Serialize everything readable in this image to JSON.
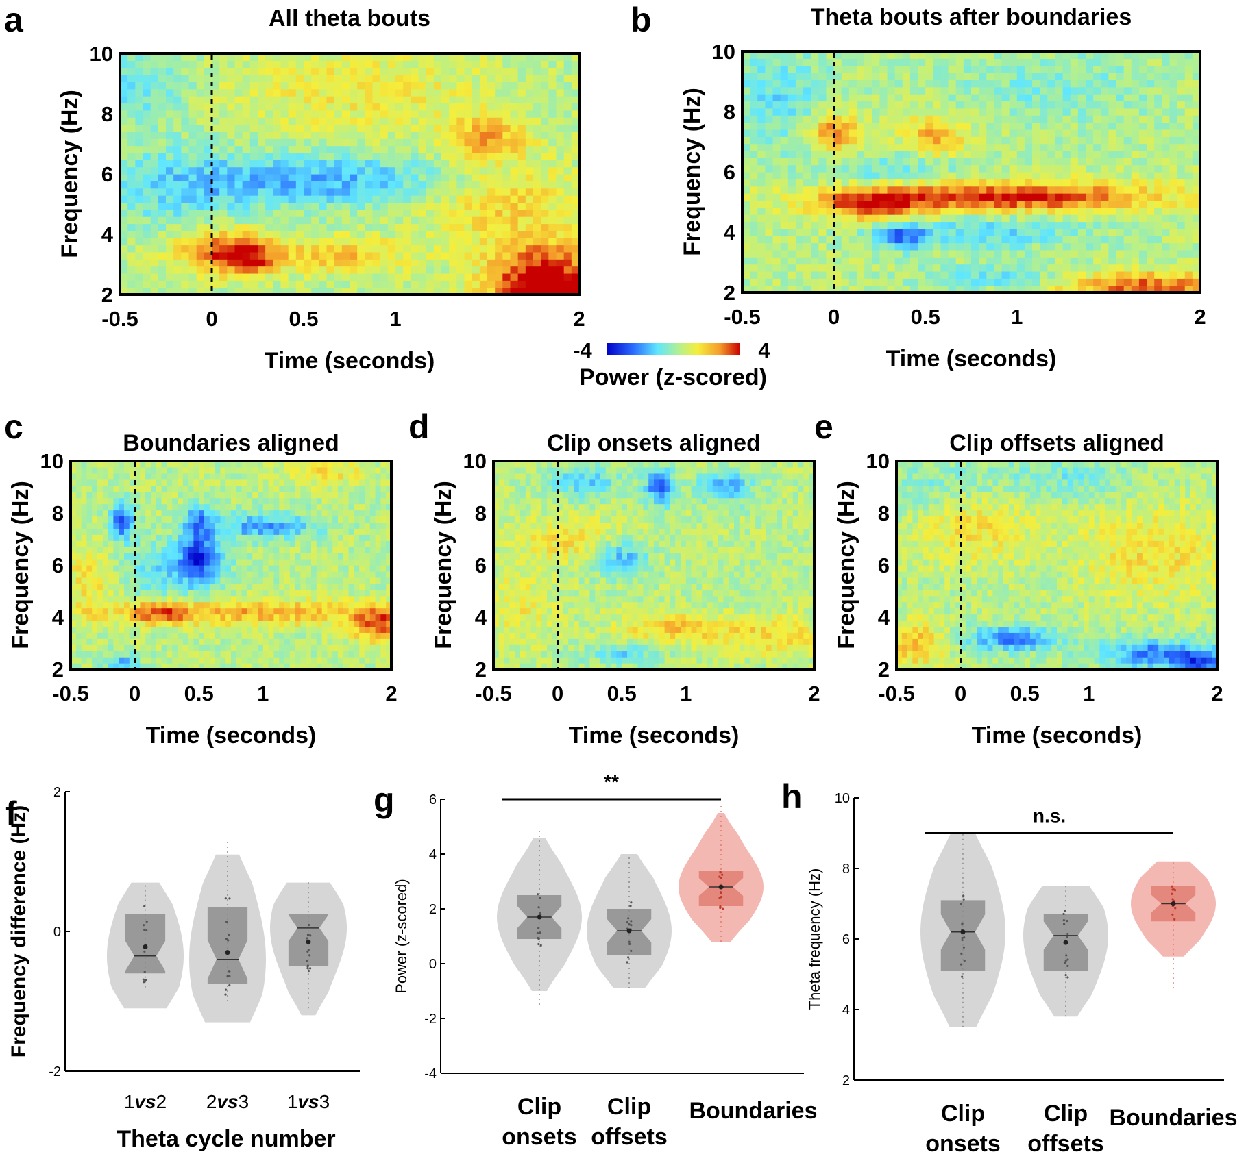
{
  "colors": {
    "jet_low": "#0000c8",
    "jet_high": "#c80000",
    "violin_gray": "#c8c8c8",
    "box_gray": "#8a8a8a",
    "violin_red": "#f0a098",
    "box_red": "#e07a6e"
  },
  "colorbar": {
    "min_label": "-4",
    "max_label": "4",
    "label": "Power (z-scored)"
  },
  "chart_data": [
    {
      "id": "a",
      "type": "heatmap",
      "letter": "a",
      "title": "All theta bouts",
      "xlabel": "Time (seconds)",
      "ylabel": "Frequency (Hz)",
      "xlim": [
        -0.5,
        2
      ],
      "ylim": [
        2,
        10
      ],
      "xticks": [
        "-0.5",
        "0",
        "0.5",
        "1",
        "2"
      ],
      "xtick_values": [
        -0.5,
        0,
        0.5,
        1,
        2
      ],
      "yticks": [
        "2",
        "4",
        "6",
        "8",
        "10"
      ],
      "ytick_values": [
        2,
        4,
        6,
        8,
        10
      ],
      "vline": 0,
      "clim": [
        -4,
        4
      ],
      "blobs": [
        {
          "t": 0.05,
          "f": 3.5,
          "amp": 2.6,
          "st": 0.18,
          "sf": 0.5
        },
        {
          "t": 0.2,
          "f": 3.2,
          "amp": 2.2,
          "st": 0.12,
          "sf": 0.4
        },
        {
          "t": 0.7,
          "f": 3.3,
          "amp": 1.8,
          "st": 0.25,
          "sf": 0.4
        },
        {
          "t": 1.8,
          "f": 2.8,
          "amp": 3.2,
          "st": 0.2,
          "sf": 0.7
        },
        {
          "t": 1.9,
          "f": 2.1,
          "amp": 3.0,
          "st": 0.25,
          "sf": 0.4
        },
        {
          "t": 1.5,
          "f": 7.2,
          "amp": 2.0,
          "st": 0.15,
          "sf": 0.5
        },
        {
          "t": 0.6,
          "f": 5.8,
          "amp": -2.0,
          "st": 0.5,
          "sf": 0.6
        },
        {
          "t": -0.2,
          "f": 5.5,
          "amp": -1.2,
          "st": 0.3,
          "sf": 1.0
        },
        {
          "t": -0.4,
          "f": 9.0,
          "amp": -1.2,
          "st": 0.2,
          "sf": 1.0
        },
        {
          "t": 0.8,
          "f": 8.8,
          "amp": 1.0,
          "st": 0.5,
          "sf": 1.0
        },
        {
          "t": 1.6,
          "f": 5.0,
          "amp": 1.4,
          "st": 0.3,
          "sf": 1.0
        }
      ]
    },
    {
      "id": "b",
      "type": "heatmap",
      "letter": "b",
      "title": "Theta bouts after boundaries",
      "xlabel": "Time (seconds)",
      "ylabel": "Frequency (Hz)",
      "xlim": [
        -0.5,
        2
      ],
      "ylim": [
        2,
        10
      ],
      "xticks": [
        "-0.5",
        "0",
        "0.5",
        "1",
        "2"
      ],
      "xtick_values": [
        -0.5,
        0,
        0.5,
        1,
        2
      ],
      "yticks": [
        "2",
        "4",
        "6",
        "8",
        "10"
      ],
      "ytick_values": [
        2,
        4,
        6,
        8,
        10
      ],
      "vline": 0,
      "clim": [
        -4,
        4
      ],
      "blobs": [
        {
          "t": 0.9,
          "f": 5.2,
          "amp": 3.6,
          "st": 0.6,
          "sf": 0.35
        },
        {
          "t": 0.2,
          "f": 4.9,
          "amp": 2.6,
          "st": 0.2,
          "sf": 0.4
        },
        {
          "t": 0.0,
          "f": 7.3,
          "amp": 2.6,
          "st": 0.1,
          "sf": 0.5
        },
        {
          "t": 0.55,
          "f": 7.2,
          "amp": 2.0,
          "st": 0.12,
          "sf": 0.5
        },
        {
          "t": 1.7,
          "f": 2.2,
          "amp": 2.8,
          "st": 0.35,
          "sf": 0.35
        },
        {
          "t": 0.35,
          "f": 3.9,
          "amp": -2.6,
          "st": 0.1,
          "sf": 0.3
        },
        {
          "t": 0.8,
          "f": 4.0,
          "amp": -1.4,
          "st": 0.4,
          "sf": 0.4
        },
        {
          "t": 0.3,
          "f": 6.0,
          "amp": -1.2,
          "st": 0.3,
          "sf": 0.5
        },
        {
          "t": -0.3,
          "f": 8.5,
          "amp": -1.3,
          "st": 0.2,
          "sf": 1.2
        },
        {
          "t": 1.2,
          "f": 8.8,
          "amp": -0.9,
          "st": 0.4,
          "sf": 0.8
        },
        {
          "t": 0.9,
          "f": 2.5,
          "amp": -1.2,
          "st": 0.3,
          "sf": 0.3
        }
      ]
    },
    {
      "id": "c",
      "type": "heatmap",
      "letter": "c",
      "title": "Boundaries aligned",
      "xlabel": "Time (seconds)",
      "ylabel": "Frequency (Hz)",
      "xlim": [
        -0.5,
        2
      ],
      "ylim": [
        2,
        10
      ],
      "xticks": [
        "-0.5",
        "0",
        "0.5",
        "1",
        "2"
      ],
      "xtick_values": [
        -0.5,
        0,
        0.5,
        1,
        2
      ],
      "yticks": [
        "2",
        "4",
        "6",
        "8",
        "10"
      ],
      "ytick_values": [
        2,
        4,
        6,
        8,
        10
      ],
      "vline": 0,
      "clim": [
        -4,
        4
      ],
      "blobs": [
        {
          "t": 0.9,
          "f": 4.2,
          "amp": 2.0,
          "st": 0.8,
          "sf": 0.35
        },
        {
          "t": 1.9,
          "f": 3.7,
          "amp": 2.6,
          "st": 0.15,
          "sf": 0.5
        },
        {
          "t": 0.2,
          "f": 4.2,
          "amp": 2.2,
          "st": 0.15,
          "sf": 0.3
        },
        {
          "t": 0.5,
          "f": 6.4,
          "amp": -3.0,
          "st": 0.1,
          "sf": 0.6
        },
        {
          "t": -0.1,
          "f": 7.7,
          "amp": -3.0,
          "st": 0.07,
          "sf": 0.5
        },
        {
          "t": 0.5,
          "f": 7.8,
          "amp": -2.2,
          "st": 0.08,
          "sf": 0.4
        },
        {
          "t": 1.0,
          "f": 7.5,
          "amp": -2.2,
          "st": 0.3,
          "sf": 0.35
        },
        {
          "t": 0.3,
          "f": 5.8,
          "amp": -1.5,
          "st": 0.3,
          "sf": 0.8
        },
        {
          "t": -0.1,
          "f": 2.2,
          "amp": -2.0,
          "st": 0.1,
          "sf": 0.3
        },
        {
          "t": -0.35,
          "f": 5.5,
          "amp": 1.2,
          "st": 0.15,
          "sf": 1.0
        },
        {
          "t": 1.5,
          "f": 9.6,
          "amp": 1.2,
          "st": 0.2,
          "sf": 0.4
        }
      ]
    },
    {
      "id": "d",
      "type": "heatmap",
      "letter": "d",
      "title": "Clip onsets aligned",
      "xlabel": "Time (seconds)",
      "ylabel": "Frequency (Hz)",
      "xlim": [
        -0.5,
        2
      ],
      "ylim": [
        2,
        10
      ],
      "xticks": [
        "-0.5",
        "0",
        "0.5",
        "1",
        "2"
      ],
      "xtick_values": [
        -0.5,
        0,
        0.5,
        1,
        2
      ],
      "yticks": [
        "2",
        "4",
        "6",
        "8",
        "10"
      ],
      "ytick_values": [
        2,
        4,
        6,
        8,
        10
      ],
      "vline": 0,
      "clim": [
        -4,
        4
      ],
      "blobs": [
        {
          "t": 0.8,
          "f": 9.0,
          "amp": -3.0,
          "st": 0.08,
          "sf": 0.5
        },
        {
          "t": 1.3,
          "f": 9.0,
          "amp": -2.2,
          "st": 0.15,
          "sf": 0.4
        },
        {
          "t": 0.5,
          "f": 6.3,
          "amp": -2.0,
          "st": 0.15,
          "sf": 0.5
        },
        {
          "t": 0.2,
          "f": 9.2,
          "amp": -1.6,
          "st": 0.2,
          "sf": 0.4
        },
        {
          "t": 0.5,
          "f": 2.6,
          "amp": -1.4,
          "st": 0.2,
          "sf": 0.3
        },
        {
          "t": 0.9,
          "f": 3.6,
          "amp": 1.6,
          "st": 0.3,
          "sf": 0.4
        },
        {
          "t": 1.7,
          "f": 3.3,
          "amp": 1.4,
          "st": 0.3,
          "sf": 0.5
        },
        {
          "t": 0.1,
          "f": 7.0,
          "amp": 1.2,
          "st": 0.3,
          "sf": 0.6
        },
        {
          "t": -0.3,
          "f": 4.5,
          "amp": 0.9,
          "st": 0.2,
          "sf": 1.0
        }
      ]
    },
    {
      "id": "e",
      "type": "heatmap",
      "letter": "e",
      "title": "Clip offsets aligned",
      "xlabel": "Time (seconds)",
      "ylabel": "Frequency (Hz)",
      "xlim": [
        -0.5,
        2
      ],
      "ylim": [
        2,
        10
      ],
      "xticks": [
        "-0.5",
        "0",
        "0.5",
        "1",
        "2"
      ],
      "xtick_values": [
        -0.5,
        0,
        0.5,
        1,
        2
      ],
      "yticks": [
        "2",
        "4",
        "6",
        "8",
        "10"
      ],
      "ytick_values": [
        2,
        4,
        6,
        8,
        10
      ],
      "vline": 0,
      "clim": [
        -4,
        4
      ],
      "blobs": [
        {
          "t": 0.4,
          "f": 3.2,
          "amp": -2.6,
          "st": 0.25,
          "sf": 0.35
        },
        {
          "t": 1.5,
          "f": 2.6,
          "amp": -2.6,
          "st": 0.3,
          "sf": 0.4
        },
        {
          "t": 1.9,
          "f": 2.3,
          "amp": -3.0,
          "st": 0.15,
          "sf": 0.3
        },
        {
          "t": -0.35,
          "f": 3.0,
          "amp": 1.8,
          "st": 0.15,
          "sf": 0.6
        },
        {
          "t": 0.1,
          "f": 7.5,
          "amp": 1.2,
          "st": 0.3,
          "sf": 1.0
        },
        {
          "t": 1.5,
          "f": 6.5,
          "amp": 1.2,
          "st": 0.4,
          "sf": 1.2
        },
        {
          "t": 0.8,
          "f": 9.3,
          "amp": -1.0,
          "st": 0.4,
          "sf": 0.6
        },
        {
          "t": -0.2,
          "f": 9.0,
          "amp": -0.8,
          "st": 0.3,
          "sf": 0.8
        }
      ]
    },
    {
      "id": "f",
      "type": "violin",
      "letter": "f",
      "xlabel": "Theta cycle number",
      "ylabel": "Frequency difference (Hz)",
      "ylim": [
        -2,
        2
      ],
      "yticks": [
        "-2",
        "0",
        "2"
      ],
      "ytick_values": [
        -2,
        0,
        2
      ],
      "significance": null,
      "groups": [
        {
          "label_a": "1",
          "label_b": "vs",
          "label_c": "2",
          "color": "gray",
          "median": -0.35,
          "mean": -0.22,
          "q1": -0.6,
          "q3": 0.25,
          "min": -1.1,
          "max": 0.7,
          "whisker_low": -0.8,
          "whisker_high": 0.7
        },
        {
          "label_a": "2",
          "label_b": "vs",
          "label_c": "3",
          "color": "gray",
          "median": -0.4,
          "mean": -0.3,
          "q1": -0.75,
          "q3": 0.35,
          "min": -1.3,
          "max": 1.1,
          "whisker_low": -1.0,
          "whisker_high": 1.3
        },
        {
          "label_a": "1",
          "label_b": "vs",
          "label_c": "3",
          "color": "gray",
          "median": 0.05,
          "mean": -0.15,
          "q1": -0.5,
          "q3": 0.25,
          "min": -1.2,
          "max": 0.7,
          "whisker_low": -1.1,
          "whisker_high": 0.75
        }
      ]
    },
    {
      "id": "g",
      "type": "violin",
      "letter": "g",
      "xlabel": "",
      "ylabel": "Power (z-scored)",
      "ylim": [
        -4,
        6
      ],
      "yticks": [
        "-4",
        "-2",
        "0",
        "2",
        "4",
        "6"
      ],
      "ytick_values": [
        -4,
        -2,
        0,
        2,
        4,
        6
      ],
      "significance": {
        "label": "**",
        "from": 0,
        "to": 2,
        "y": 6.0
      },
      "groups": [
        {
          "label_a": "Clip",
          "label_c": "onsets",
          "color": "gray",
          "median": 1.7,
          "mean": 1.7,
          "q1": 0.9,
          "q3": 2.5,
          "min": -1.0,
          "max": 4.6,
          "whisker_low": -1.5,
          "whisker_high": 5.0
        },
        {
          "label_a": "Clip",
          "label_c": "offsets",
          "color": "gray",
          "median": 1.2,
          "mean": 1.2,
          "q1": 0.3,
          "q3": 2.0,
          "min": -0.9,
          "max": 4.0,
          "whisker_low": -0.9,
          "whisker_high": 4.0
        },
        {
          "label_a": "Boundaries",
          "label_c": "",
          "color": "red",
          "median": 2.8,
          "mean": 2.8,
          "q1": 2.1,
          "q3": 3.4,
          "min": 0.8,
          "max": 5.5,
          "whisker_low": 0.8,
          "whisker_high": 5.8
        }
      ]
    },
    {
      "id": "h",
      "type": "violin",
      "letter": "h",
      "xlabel": "",
      "ylabel": "Theta frequency (Hz)",
      "ylim": [
        2,
        10
      ],
      "yticks": [
        "2",
        "4",
        "6",
        "8",
        "10"
      ],
      "ytick_values": [
        2,
        4,
        6,
        8,
        10
      ],
      "significance": {
        "label": "n.s.",
        "from": 0,
        "to": 2,
        "y": 9.0
      },
      "groups": [
        {
          "label_a": "Clip",
          "label_c": "onsets",
          "color": "gray",
          "median": 6.2,
          "mean": 6.2,
          "q1": 5.1,
          "q3": 7.1,
          "min": 3.5,
          "max": 9.0,
          "whisker_low": 3.5,
          "whisker_high": 9.0
        },
        {
          "label_a": "Clip",
          "label_c": "offsets",
          "color": "gray",
          "median": 6.1,
          "mean": 5.9,
          "q1": 5.1,
          "q3": 6.7,
          "min": 3.8,
          "max": 7.5,
          "whisker_low": 3.8,
          "whisker_high": 7.6
        },
        {
          "label_a": "Boundaries",
          "label_c": "",
          "color": "red",
          "median": 7.0,
          "mean": 7.0,
          "q1": 6.5,
          "q3": 7.5,
          "min": 5.5,
          "max": 8.2,
          "whisker_low": 4.6,
          "whisker_high": 8.2
        }
      ]
    }
  ]
}
